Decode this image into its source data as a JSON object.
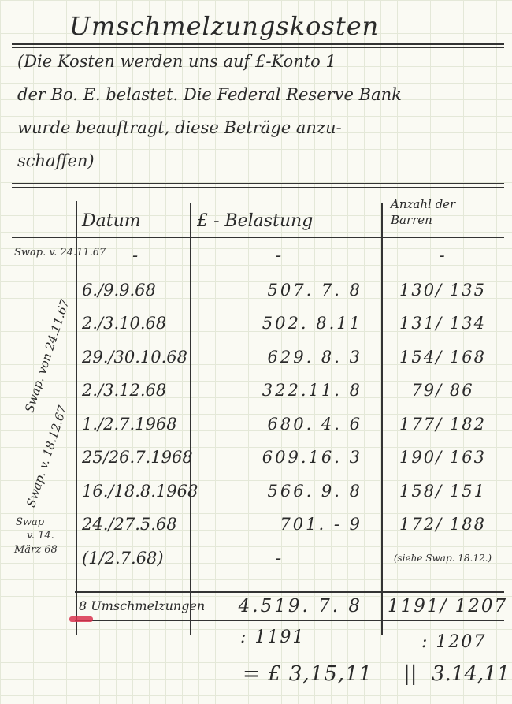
{
  "title": "Umschmelzungskosten",
  "note_lines": [
    "(Die Kosten werden uns auf £-Konto 1",
    "der Bo. E. belastet. Die Federal Reserve Bank",
    "wurde beauftragt, diese Beträge anzu-",
    "schaffen)"
  ],
  "table": {
    "headers": {
      "date": "Datum",
      "amount": "£ - Belastung",
      "bars_line1": "Anzahl der",
      "bars_line2": "Barren"
    },
    "rows": [
      {
        "date": "-",
        "amount": "-",
        "bars": "-"
      },
      {
        "date": "6./9.9.68",
        "amount": "507. 7. 8",
        "bars": "130/ 135"
      },
      {
        "date": "2./3.10.68",
        "amount": "502. 8.11",
        "bars": "131/ 134"
      },
      {
        "date": "29./30.10.68",
        "amount": "629. 8. 3",
        "bars": "154/ 168"
      },
      {
        "date": "2./3.12.68",
        "amount": "322.11. 8",
        "bars": "79/ 86"
      },
      {
        "date": "1./2.7.1968",
        "amount": "680. 4. 6",
        "bars": "177/ 182"
      },
      {
        "date": "25/26.7.1968",
        "amount": "609.16. 3",
        "bars": "190/ 163"
      },
      {
        "date": "16./18.8.1968",
        "amount": "566. 9. 8",
        "bars": "158/ 151"
      },
      {
        "date": "24./27.5.68",
        "amount": "701. - 9",
        "bars": "172/ 188"
      },
      {
        "date": "(1/2.7.68)",
        "amount": "-",
        "bars": "(siehe Swap. 18.12.)"
      }
    ],
    "total": {
      "date": "8 Umschmelzungen",
      "amount": "4.519. 7. 8",
      "bars": "1191/ 1207"
    }
  },
  "margin_notes": {
    "group1": "Swap. v. 24.11.67",
    "group2": "Swap. von 24.11.67",
    "group3": "Swap. v. 18.12.67",
    "group4_line1": "Swap",
    "group4_line2": "v. 14.",
    "group4_line3": "März 68"
  },
  "calculation": {
    "divisor_1": ": 1191",
    "divisor_2": ": 1207",
    "result_1": "= £ 3,15,11",
    "separator": "||",
    "result_2": "3.14,11"
  },
  "colors": {
    "ink": "#2a2a2a",
    "grid": "#e4e8d8",
    "red_mark": "#d8324e"
  }
}
